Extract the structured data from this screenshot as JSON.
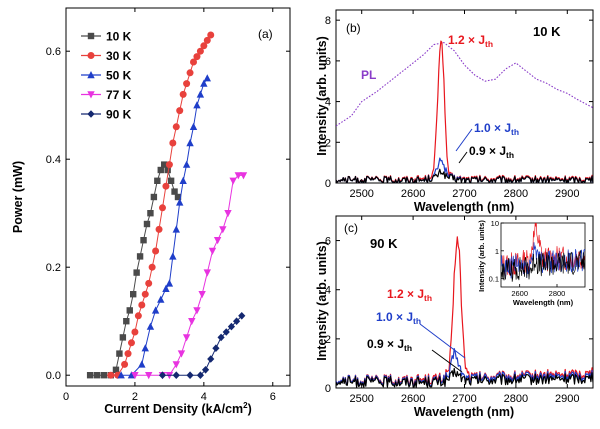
{
  "chart_data": [
    {
      "panel": "(a)",
      "type": "scatter",
      "xlabel": "Current Density (kA/cm²)",
      "xlabel_main": "Current Density (kA/cm",
      "xlabel_sup": "2",
      "xlabel_end": ")",
      "ylabel": "Power (mW)",
      "xlim": [
        0,
        6.5
      ],
      "ylim": [
        -0.02,
        0.68
      ],
      "xticks": [
        0,
        2,
        4,
        6
      ],
      "yticks": [
        0.0,
        0.2,
        0.4,
        0.6
      ],
      "ytick_labels": [
        "0.0",
        "0.2",
        "0.4",
        "0.6"
      ],
      "legend_position": "top-left",
      "series": [
        {
          "name": "10 K",
          "color": "#4a4a4a",
          "marker": "square",
          "x": [
            0.7,
            0.9,
            1.1,
            1.3,
            1.45,
            1.55,
            1.65,
            1.75,
            1.85,
            1.95,
            2.05,
            2.15,
            2.25,
            2.35,
            2.45,
            2.55,
            2.65,
            2.75,
            2.85,
            2.95,
            3.05,
            3.15,
            3.25
          ],
          "y": [
            0.0,
            0.0,
            0.0,
            0.0,
            0.01,
            0.04,
            0.07,
            0.1,
            0.12,
            0.15,
            0.19,
            0.22,
            0.25,
            0.28,
            0.3,
            0.33,
            0.36,
            0.38,
            0.39,
            0.38,
            0.36,
            0.34,
            0.33
          ]
        },
        {
          "name": "30 K",
          "color": "#e8413c",
          "marker": "circle",
          "x": [
            1.3,
            1.5,
            1.7,
            1.8,
            1.9,
            2.0,
            2.1,
            2.2,
            2.3,
            2.4,
            2.5,
            2.6,
            2.7,
            2.8,
            2.9,
            3.0,
            3.1,
            3.2,
            3.3,
            3.4,
            3.5,
            3.6,
            3.7,
            3.8,
            3.9,
            4.0,
            4.1,
            4.2
          ],
          "y": [
            0.0,
            0.0,
            0.02,
            0.04,
            0.06,
            0.08,
            0.11,
            0.13,
            0.15,
            0.17,
            0.2,
            0.23,
            0.27,
            0.31,
            0.35,
            0.39,
            0.43,
            0.46,
            0.49,
            0.52,
            0.54,
            0.56,
            0.58,
            0.59,
            0.6,
            0.61,
            0.62,
            0.63
          ]
        },
        {
          "name": "50 K",
          "color": "#1f3ec9",
          "marker": "triangle-up",
          "x": [
            1.6,
            1.9,
            2.2,
            2.3,
            2.45,
            2.6,
            2.75,
            2.9,
            3.0,
            3.1,
            3.2,
            3.3,
            3.4,
            3.5,
            3.6,
            3.7,
            3.8,
            3.9,
            4.0,
            4.1
          ],
          "y": [
            0.0,
            0.0,
            0.02,
            0.05,
            0.09,
            0.12,
            0.14,
            0.16,
            0.17,
            0.22,
            0.27,
            0.32,
            0.36,
            0.39,
            0.43,
            0.46,
            0.5,
            0.52,
            0.54,
            0.55
          ]
        },
        {
          "name": "77 K",
          "color": "#e833e0",
          "marker": "triangle-down",
          "x": [
            2.0,
            2.4,
            2.8,
            3.0,
            3.2,
            3.35,
            3.5,
            3.65,
            3.8,
            3.95,
            4.1,
            4.25,
            4.4,
            4.55,
            4.7,
            4.85,
            5.0,
            5.15
          ],
          "y": [
            0.0,
            0.0,
            0.0,
            0.0,
            0.02,
            0.04,
            0.07,
            0.1,
            0.12,
            0.15,
            0.19,
            0.23,
            0.25,
            0.27,
            0.3,
            0.36,
            0.37,
            0.37
          ]
        },
        {
          "name": "90 K",
          "color": "#142870",
          "marker": "diamond",
          "x": [
            2.8,
            3.2,
            3.6,
            3.9,
            4.05,
            4.2,
            4.35,
            4.5,
            4.65,
            4.8,
            4.95,
            5.1
          ],
          "y": [
            0.0,
            0.0,
            0.0,
            0.0,
            0.01,
            0.03,
            0.05,
            0.07,
            0.08,
            0.09,
            0.1,
            0.11
          ]
        }
      ]
    },
    {
      "panel": "(b)",
      "type": "line",
      "temperature_label": "10 K",
      "xlabel": "Wavelength (nm)",
      "ylabel": "Intensity (arb. units)",
      "xlim": [
        2450,
        2950
      ],
      "ylim": [
        0,
        8.5
      ],
      "xticks": [
        2500,
        2600,
        2700,
        2800,
        2900
      ],
      "yticks": [
        0,
        2,
        4,
        6,
        8
      ],
      "annotations": [
        {
          "main": "1.2 × J",
          "sub": "th",
          "color": "#e8171e"
        },
        {
          "main": "1.0 × J",
          "sub": "th",
          "color": "#1f3ec9"
        },
        {
          "main": "0.9 × J",
          "sub": "th",
          "color": "#000000"
        },
        {
          "main": "PL",
          "sub": "",
          "color": "#8a3cc9"
        }
      ],
      "series": [
        {
          "name": "1.2 × Jth",
          "color": "#e8171e",
          "x": [
            2450,
            2600,
            2630,
            2640,
            2645,
            2650,
            2655,
            2660,
            2665,
            2670,
            2680,
            2700,
            2950
          ],
          "y": [
            0.15,
            0.2,
            0.25,
            0.6,
            2.5,
            5.5,
            7.5,
            5.0,
            1.5,
            0.4,
            0.25,
            0.2,
            0.2
          ]
        },
        {
          "name": "1.0 × Jth",
          "color": "#1f3ec9",
          "x": [
            2450,
            2620,
            2640,
            2650,
            2655,
            2660,
            2670,
            2700,
            2950
          ],
          "y": [
            0.15,
            0.15,
            0.3,
            0.9,
            1.3,
            0.8,
            0.3,
            0.15,
            0.15
          ]
        },
        {
          "name": "0.9 × Jth",
          "color": "#000000",
          "x": [
            2450,
            2620,
            2645,
            2655,
            2665,
            2690,
            2950
          ],
          "y": [
            0.15,
            0.15,
            0.3,
            0.6,
            0.3,
            0.15,
            0.15
          ]
        },
        {
          "name": "PL",
          "color": "#8a3cc9",
          "dashed": true,
          "x": [
            2450,
            2480,
            2500,
            2530,
            2560,
            2590,
            2620,
            2640,
            2660,
            2680,
            2700,
            2720,
            2740,
            2760,
            2780,
            2800,
            2820,
            2840,
            2860,
            2880,
            2900,
            2920,
            2950
          ],
          "y": [
            2.8,
            3.3,
            4.0,
            4.5,
            5.1,
            5.7,
            6.3,
            6.8,
            6.9,
            6.5,
            5.8,
            5.3,
            5.0,
            5.1,
            5.6,
            5.9,
            5.5,
            5.1,
            4.9,
            4.6,
            4.4,
            4.1,
            3.7
          ]
        }
      ]
    },
    {
      "panel": "(c)",
      "type": "line",
      "temperature_label": "90 K",
      "xlabel": "Wavelength (nm)",
      "ylabel": "Intensity (arb. units)",
      "xlim": [
        2450,
        2950
      ],
      "ylim": [
        0,
        7
      ],
      "xticks": [
        2500,
        2600,
        2700,
        2800,
        2900
      ],
      "yticks": [
        0,
        2,
        4,
        6
      ],
      "annotations": [
        {
          "main": "1.2 × J",
          "sub": "th",
          "color": "#e8171e"
        },
        {
          "main": "1.0 × J",
          "sub": "th",
          "color": "#1f3ec9"
        },
        {
          "main": "0.9 × J",
          "sub": "th",
          "color": "#000000"
        }
      ],
      "series": [
        {
          "name": "1.2 × Jth",
          "color": "#e8171e",
          "x": [
            2450,
            2600,
            2660,
            2670,
            2675,
            2680,
            2685,
            2690,
            2695,
            2700,
            2705,
            2715,
            2750,
            2950
          ],
          "y": [
            0.3,
            0.35,
            0.4,
            0.8,
            2.0,
            4.5,
            6.2,
            5.5,
            3.0,
            1.2,
            0.6,
            0.45,
            0.45,
            0.6
          ]
        },
        {
          "name": "1.0 × Jth",
          "color": "#1f3ec9",
          "x": [
            2450,
            2650,
            2670,
            2677,
            2682,
            2688,
            2700,
            2950
          ],
          "y": [
            0.3,
            0.3,
            0.5,
            1.2,
            1.6,
            0.9,
            0.4,
            0.5
          ]
        },
        {
          "name": "0.9 × Jth",
          "color": "#000000",
          "x": [
            2450,
            2660,
            2675,
            2682,
            2690,
            2705,
            2950
          ],
          "y": [
            0.25,
            0.25,
            0.45,
            0.7,
            0.45,
            0.3,
            0.4
          ]
        }
      ],
      "inset": {
        "xlabel": "Wavelength (nm)",
        "ylabel": "Intensity (arb. units)",
        "xlim": [
          2500,
          2950
        ],
        "ylim_log": [
          0.05,
          10
        ],
        "xticks": [
          2600,
          2800
        ],
        "yticks": [
          0.1,
          1,
          10
        ],
        "ytick_labels": [
          "0.1",
          "1",
          "10"
        ],
        "series": [
          {
            "name": "1.2 × Jth",
            "color": "#e8171e",
            "x": [
              2500,
              2600,
              2660,
              2680,
              2690,
              2700,
              2720,
              2950
            ],
            "y": [
              0.3,
              0.35,
              0.5,
              4.0,
              6.0,
              2.0,
              0.5,
              0.6
            ]
          },
          {
            "name": "1.0 × Jth",
            "color": "#1f3ec9",
            "x": [
              2500,
              2660,
              2685,
              2700,
              2950
            ],
            "y": [
              0.25,
              0.3,
              1.5,
              0.4,
              0.5
            ]
          },
          {
            "name": "0.9 × Jth",
            "color": "#000000",
            "x": [
              2500,
              2670,
              2685,
              2700,
              2950
            ],
            "y": [
              0.2,
              0.25,
              0.6,
              0.3,
              0.4
            ]
          }
        ]
      }
    }
  ]
}
